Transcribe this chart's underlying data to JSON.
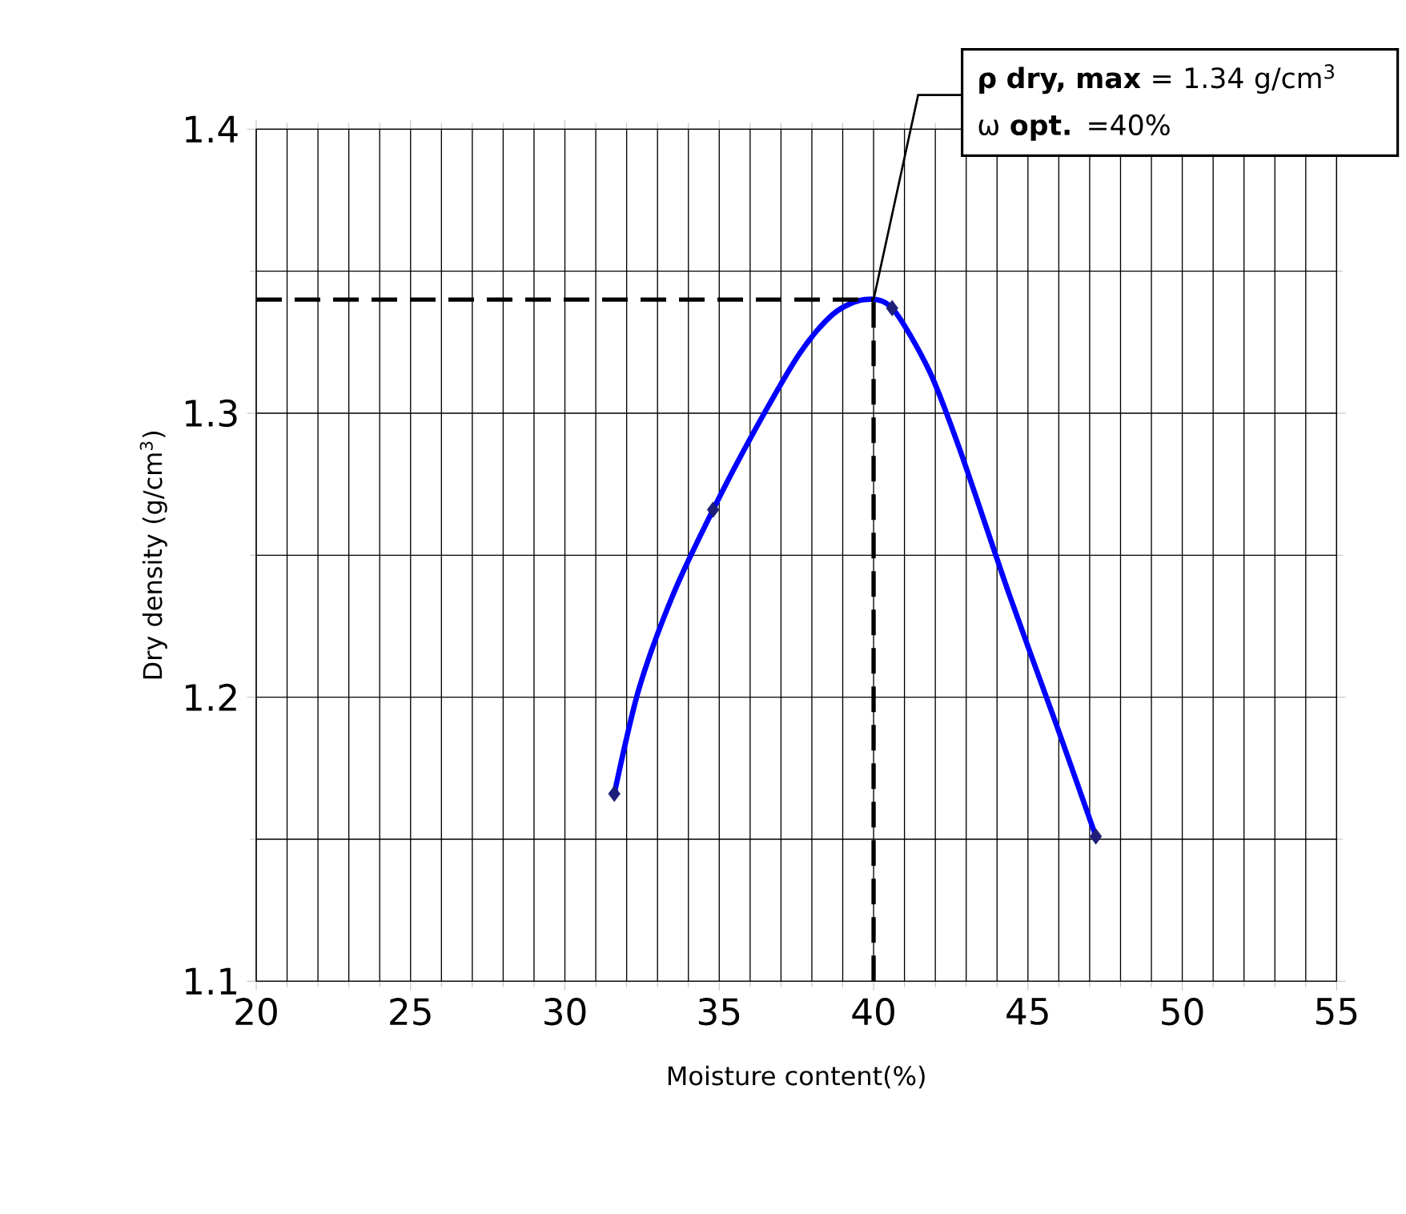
{
  "chart_data": {
    "type": "scatter",
    "xlabel": "Moisture content(%)",
    "ylabel": "Dry density (g/cm$^{3}$)",
    "xlim": [
      20,
      55
    ],
    "ylim": [
      1.1,
      1.4
    ],
    "xticks": [
      20,
      25,
      30,
      35,
      40,
      45,
      50,
      55
    ],
    "yticks": [
      1.1,
      1.2,
      1.3,
      1.4
    ],
    "grid": true,
    "marker": "diamond",
    "series": [
      {
        "color": "#1f1f7a",
        "x": [
          31.6,
          34.8,
          40.6,
          47.2
        ],
        "values": [
          1.166,
          1.266,
          1.337,
          1.151
        ]
      },
      {
        "type": "line",
        "color": "#0000ff",
        "marker": "none",
        "line_style": "solid",
        "x": [
          31.6,
          32.4,
          33.5,
          34.8,
          36.1,
          37.6,
          38.7,
          39.7,
          40.6,
          41.8,
          42.8,
          44.4,
          45.9,
          47.2
        ],
        "values": [
          1.166,
          1.203,
          1.236,
          1.266,
          1.293,
          1.321,
          1.335,
          1.34,
          1.337,
          1.315,
          1.287,
          1.236,
          1.191,
          1.151
        ]
      }
    ],
    "ref_lines": [
      {
        "axis": "y",
        "value": 1.34,
        "line_style": "dashed"
      },
      {
        "axis": "x",
        "value": 40,
        "line_style": "dashed"
      }
    ],
    "annotations": [
      {
        "text": "**ρ dry, max** = 1.34 g/cm$^{3}$",
        "x": 40,
        "y": 1.34
      },
      "ω **opt.** =40%"
    ]
  }
}
